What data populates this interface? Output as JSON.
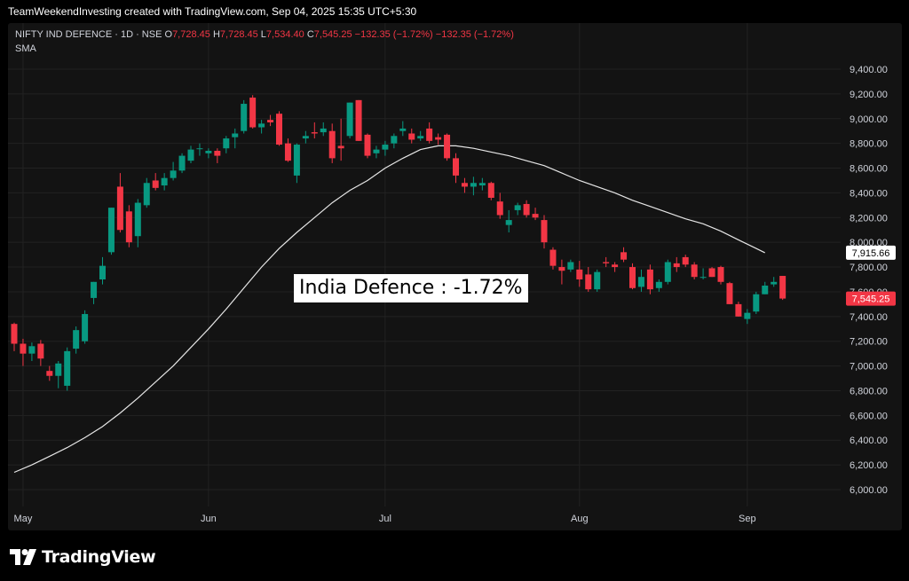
{
  "header": {
    "credit": "TeamWeekendInvesting created with TradingView.com, Sep 04, 2025 15:35 UTC+5:30"
  },
  "legend": {
    "symbol": "NIFTY IND DEFENCE · 1D · NSE",
    "o_label": "O",
    "o_value": "7,728.45",
    "h_label": "H",
    "h_value": "7,728.45",
    "l_label": "L",
    "l_value": "7,534.40",
    "c_label": "C",
    "c_value": "7,545.25",
    "change": "−132.35 (−1.72%)",
    "change2": "−132.35 (−1.72%)",
    "indicator": "SMA"
  },
  "annotation": "India Defence : -1.72%",
  "footer": {
    "brand": "TradingView"
  },
  "colors": {
    "up": "#089981",
    "down": "#f23645",
    "sma": "#e6e6e6",
    "grid": "#222222",
    "axis_text": "#d1d4dc"
  },
  "chart_data": {
    "type": "candlestick",
    "y_ticks": [
      "9,400.00",
      "9,200.00",
      "9,000.00",
      "8,800.00",
      "8,600.00",
      "8,400.00",
      "8,200.00",
      "8,000.00",
      "7,800.00",
      "7,600.00",
      "7,400.00",
      "7,200.00",
      "7,000.00",
      "6,800.00",
      "6,600.00",
      "6,400.00",
      "6,200.00",
      "6,000.00"
    ],
    "y_tick_values": [
      9400,
      9200,
      9000,
      8800,
      8600,
      8400,
      8200,
      8000,
      7800,
      7600,
      7400,
      7200,
      7000,
      6800,
      6600,
      6400,
      6200,
      6000
    ],
    "ylim": [
      5920,
      9500
    ],
    "x_ticks": [
      {
        "label": "May",
        "index": 1
      },
      {
        "label": "Jun",
        "index": 22
      },
      {
        "label": "Jul",
        "index": 42
      },
      {
        "label": "Aug",
        "index": 64
      },
      {
        "label": "Sep",
        "index": 83
      }
    ],
    "sma_badge": "7,915.66",
    "sma_value": 7915.66,
    "last_badge": "7,545.25",
    "last_value": 7545.25,
    "candles": [
      [
        7340,
        7350,
        7120,
        7180
      ],
      [
        7180,
        7220,
        7000,
        7100
      ],
      [
        7100,
        7190,
        7040,
        7160
      ],
      [
        7180,
        7210,
        7000,
        7060
      ],
      [
        6960,
        7000,
        6880,
        6920
      ],
      [
        6920,
        7040,
        6820,
        7020
      ],
      [
        6840,
        7150,
        6800,
        7120
      ],
      [
        7140,
        7320,
        7100,
        7290
      ],
      [
        7200,
        7450,
        7180,
        7420
      ],
      [
        7550,
        7680,
        7500,
        7680
      ],
      [
        7700,
        7880,
        7660,
        7810
      ],
      [
        7920,
        8280,
        7900,
        8280
      ],
      [
        8450,
        8560,
        8080,
        8100
      ],
      [
        8250,
        8300,
        7960,
        8000
      ],
      [
        8050,
        8350,
        7960,
        8320
      ],
      [
        8300,
        8520,
        8280,
        8480
      ],
      [
        8500,
        8560,
        8420,
        8440
      ],
      [
        8460,
        8560,
        8420,
        8520
      ],
      [
        8520,
        8650,
        8500,
        8580
      ],
      [
        8580,
        8720,
        8560,
        8700
      ],
      [
        8660,
        8780,
        8640,
        8750
      ],
      [
        8760,
        8800,
        8700,
        8760
      ],
      [
        8720,
        8760,
        8680,
        8740
      ],
      [
        8740,
        8760,
        8640,
        8700
      ],
      [
        8760,
        8860,
        8720,
        8840
      ],
      [
        8850,
        8920,
        8760,
        8880
      ],
      [
        8900,
        9150,
        8880,
        9120
      ],
      [
        9170,
        9190,
        8920,
        8930
      ],
      [
        8930,
        8990,
        8880,
        8960
      ],
      [
        8990,
        9030,
        8940,
        8970
      ],
      [
        9040,
        9060,
        8780,
        8790
      ],
      [
        8800,
        8840,
        8650,
        8660
      ],
      [
        8540,
        8800,
        8480,
        8790
      ],
      [
        8840,
        8900,
        8800,
        8860
      ],
      [
        8890,
        8970,
        8840,
        8880
      ],
      [
        8890,
        8970,
        8860,
        8920
      ],
      [
        8900,
        8960,
        8640,
        8680
      ],
      [
        8780,
        9000,
        8660,
        8760
      ],
      [
        8860,
        9130,
        8840,
        9130
      ],
      [
        9150,
        9150,
        8820,
        8820
      ],
      [
        8870,
        8880,
        8680,
        8700
      ],
      [
        8720,
        8780,
        8680,
        8750
      ],
      [
        8750,
        8820,
        8700,
        8790
      ],
      [
        8800,
        8880,
        8760,
        8860
      ],
      [
        8900,
        8980,
        8860,
        8920
      ],
      [
        8880,
        8920,
        8800,
        8830
      ],
      [
        8840,
        8900,
        8820,
        8860
      ],
      [
        8920,
        8970,
        8800,
        8820
      ],
      [
        8850,
        8880,
        8790,
        8830
      ],
      [
        8870,
        8880,
        8660,
        8680
      ],
      [
        8680,
        8720,
        8480,
        8540
      ],
      [
        8480,
        8520,
        8400,
        8450
      ],
      [
        8450,
        8530,
        8380,
        8480
      ],
      [
        8460,
        8520,
        8420,
        8480
      ],
      [
        8480,
        8490,
        8340,
        8360
      ],
      [
        8330,
        8400,
        8190,
        8220
      ],
      [
        8140,
        8260,
        8080,
        8180
      ],
      [
        8260,
        8320,
        8220,
        8300
      ],
      [
        8310,
        8340,
        8200,
        8220
      ],
      [
        8230,
        8280,
        8180,
        8200
      ],
      [
        8180,
        8220,
        7950,
        8000
      ],
      [
        7940,
        7960,
        7780,
        7810
      ],
      [
        7800,
        7860,
        7660,
        7770
      ],
      [
        7780,
        7860,
        7760,
        7840
      ],
      [
        7780,
        7850,
        7640,
        7700
      ],
      [
        7740,
        7800,
        7600,
        7620
      ],
      [
        7620,
        7780,
        7600,
        7760
      ],
      [
        7840,
        7880,
        7800,
        7830
      ],
      [
        7820,
        7840,
        7760,
        7800
      ],
      [
        7920,
        7960,
        7840,
        7860
      ],
      [
        7800,
        7830,
        7620,
        7630
      ],
      [
        7640,
        7780,
        7600,
        7720
      ],
      [
        7780,
        7820,
        7580,
        7620
      ],
      [
        7630,
        7700,
        7600,
        7680
      ],
      [
        7680,
        7860,
        7660,
        7840
      ],
      [
        7830,
        7880,
        7760,
        7800
      ],
      [
        7880,
        7900,
        7800,
        7820
      ],
      [
        7820,
        7840,
        7700,
        7720
      ],
      [
        7720,
        7790,
        7700,
        7720
      ],
      [
        7790,
        7800,
        7720,
        7720
      ],
      [
        7800,
        7810,
        7660,
        7680
      ],
      [
        7670,
        7680,
        7500,
        7500
      ],
      [
        7500,
        7520,
        7400,
        7400
      ],
      [
        7380,
        7460,
        7340,
        7430
      ],
      [
        7440,
        7600,
        7420,
        7580
      ],
      [
        7580,
        7680,
        7580,
        7650
      ],
      [
        7660,
        7720,
        7640,
        7680
      ],
      [
        7728.45,
        7728.45,
        7534.4,
        7545.25
      ]
    ],
    "sma": [
      [
        0,
        6140
      ],
      [
        2,
        6200
      ],
      [
        4,
        6270
      ],
      [
        6,
        6340
      ],
      [
        8,
        6420
      ],
      [
        10,
        6510
      ],
      [
        12,
        6620
      ],
      [
        14,
        6740
      ],
      [
        16,
        6870
      ],
      [
        18,
        7000
      ],
      [
        20,
        7150
      ],
      [
        22,
        7300
      ],
      [
        24,
        7460
      ],
      [
        26,
        7630
      ],
      [
        28,
        7800
      ],
      [
        30,
        7950
      ],
      [
        32,
        8080
      ],
      [
        34,
        8200
      ],
      [
        36,
        8320
      ],
      [
        38,
        8420
      ],
      [
        40,
        8500
      ],
      [
        42,
        8600
      ],
      [
        44,
        8680
      ],
      [
        46,
        8750
      ],
      [
        48,
        8780
      ],
      [
        50,
        8780
      ],
      [
        52,
        8760
      ],
      [
        54,
        8730
      ],
      [
        56,
        8700
      ],
      [
        58,
        8660
      ],
      [
        60,
        8620
      ],
      [
        62,
        8560
      ],
      [
        64,
        8500
      ],
      [
        66,
        8450
      ],
      [
        68,
        8400
      ],
      [
        70,
        8340
      ],
      [
        72,
        8290
      ],
      [
        74,
        8240
      ],
      [
        76,
        8190
      ],
      [
        78,
        8150
      ],
      [
        80,
        8090
      ],
      [
        82,
        8020
      ],
      [
        84,
        7950
      ],
      [
        85,
        7915.66
      ]
    ]
  }
}
